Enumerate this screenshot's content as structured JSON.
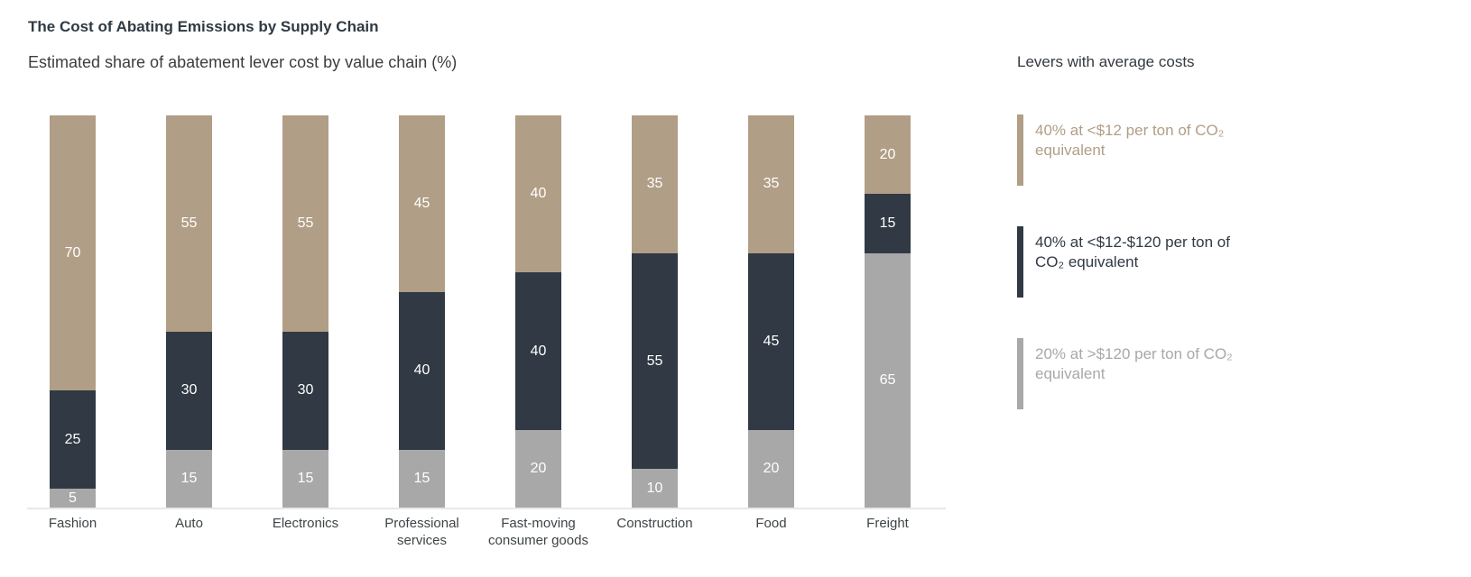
{
  "chart_data": {
    "type": "bar",
    "stacked": true,
    "orientation": "vertical",
    "title": "The Cost of Abating Emissions by Supply Chain",
    "subtitle": "Estimated share of abatement lever cost by value chain (%)",
    "unit": "%",
    "ylim": [
      0,
      100
    ],
    "grid": false,
    "value_labels": true,
    "value_label_color": "#ffffff",
    "categories": [
      "Fashion",
      "Auto",
      "Electronics",
      "Professional services",
      "Fast-moving consumer goods",
      "Construction",
      "Food",
      "Freight"
    ],
    "category_label_lines": [
      [
        "Fashion"
      ],
      [
        "Auto"
      ],
      [
        "Electronics"
      ],
      [
        "Professional",
        "services"
      ],
      [
        "Fast-moving",
        "consumer goods"
      ],
      [
        "Construction"
      ],
      [
        "Food"
      ],
      [
        "Freight"
      ]
    ],
    "series_order": "bottom-to-top",
    "series": [
      {
        "name": "20% at >$120 per ton of CO₂ equivalent",
        "color": "#a8a8a8",
        "values": [
          5,
          15,
          15,
          15,
          20,
          10,
          20,
          65
        ]
      },
      {
        "name": "40% at <$12-$120 per ton of CO₂ equivalent",
        "color": "#303944",
        "values": [
          25,
          30,
          30,
          40,
          40,
          55,
          45,
          15
        ]
      },
      {
        "name": "40% at <$12 per ton of CO₂ equivalent",
        "color": "#b19e86",
        "values": [
          70,
          55,
          55,
          45,
          40,
          35,
          35,
          20
        ]
      }
    ],
    "legend": {
      "title": "Levers with average costs",
      "position": "right",
      "items": [
        {
          "line1": "40% at <$12 per ton of CO₂",
          "line2": "equivalent",
          "color": "#b19e86"
        },
        {
          "line1": "40% at <$12-$120 per ton of",
          "line2": "CO₂ equivalent",
          "color": "#303944"
        },
        {
          "line1": "20% at >$120 per ton of CO₂",
          "line2": "equivalent",
          "color": "#a8a8a8"
        }
      ]
    },
    "colors": {
      "axis_line": "#e5e8eb",
      "title_text": "#2f3a43",
      "axis_label_text": "#3f4447"
    }
  }
}
